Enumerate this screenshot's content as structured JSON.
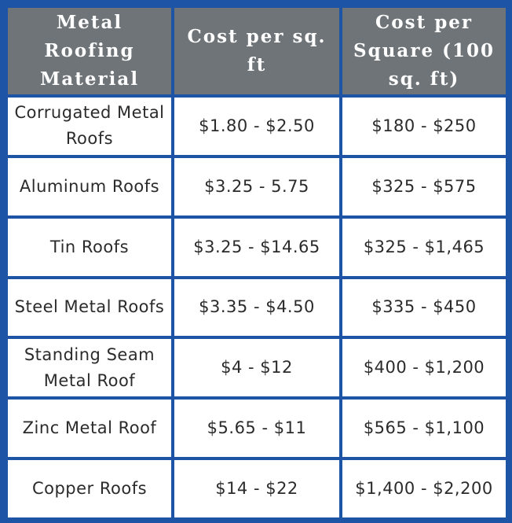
{
  "table": {
    "header": [
      "Metal Roofing Material",
      "Cost per sq. ft",
      "Cost per Square (100 sq. ft)"
    ],
    "rows": [
      [
        "Corrugated Metal Roofs",
        "$1.80 - $2.50",
        "$180 - $250"
      ],
      [
        "Aluminum Roofs",
        "$3.25 - 5.75",
        "$325 - $575"
      ],
      [
        "Tin Roofs",
        "$3.25 - $14.65",
        "$325 - $1,465"
      ],
      [
        "Steel Metal Roofs",
        "$3.35 - $4.50",
        "$335 - $450"
      ],
      [
        "Standing Seam Metal Roof",
        "$4 - $12",
        "$400 - $1,200"
      ],
      [
        "Zinc Metal Roof",
        "$5.65 - $11",
        "$565 - $1,100"
      ],
      [
        "Copper Roofs",
        "$14 - $22",
        "$1,400 - $2,200"
      ]
    ]
  }
}
